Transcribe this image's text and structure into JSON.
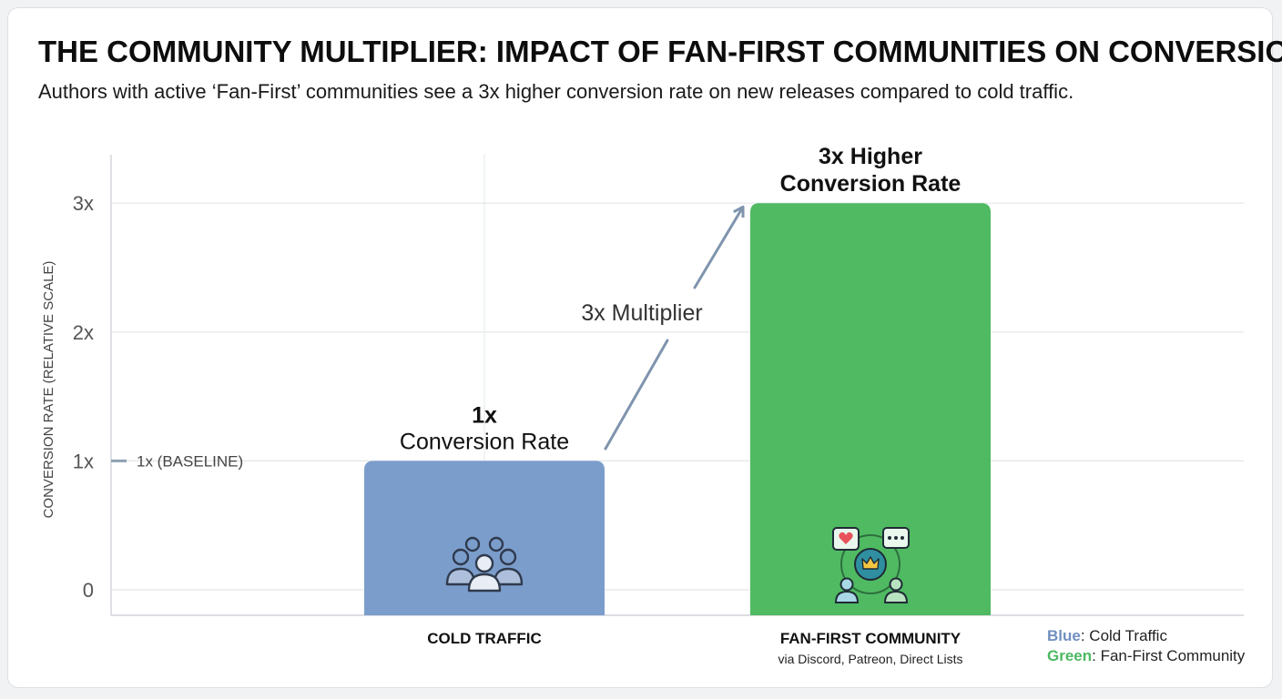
{
  "title": "THE COMMUNITY MULTIPLIER: IMPACT OF FAN-FIRST COMMUNITIES ON CONVERSION",
  "subtitle": "Authors with active ‘Fan-First’ communities see a 3x higher conversion rate on new releases compared to cold traffic.",
  "colors": {
    "cold": "#7b9dcb",
    "fan": "#4fba62",
    "arrow": "#7f94ad"
  },
  "chart_data": {
    "type": "bar",
    "ylabel": "CONVERSION RATE (RELATIVE SCALE)",
    "ylim": [
      0,
      3.3
    ],
    "yticks": [
      {
        "value": 0,
        "label": "0"
      },
      {
        "value": 1,
        "label": "1x"
      },
      {
        "value": 2,
        "label": "2x"
      },
      {
        "value": 3,
        "label": "3x"
      }
    ],
    "grid": true,
    "categories": [
      "COLD TRAFFIC",
      "FAN-FIRST COMMUNITY"
    ],
    "category_sublabels": [
      "",
      "via Discord, Patreon, Direct Lists"
    ],
    "values": [
      1,
      3
    ],
    "bar_colors": [
      "#7b9dcb",
      "#4fba62"
    ],
    "bar_icons": [
      "group-of-people-icon",
      "community-hub-icon"
    ],
    "data_labels": [
      {
        "bold": "1x",
        "text": "Conversion Rate"
      },
      {
        "bold": "3x Higher",
        "text": "Conversion Rate"
      }
    ],
    "baseline_label": "1x (BASELINE)",
    "annotation": "3x Multiplier",
    "legend": [
      {
        "key": "Blue",
        "text": ": Cold Traffic",
        "color": "#7b9dcb"
      },
      {
        "key": "Green",
        "text": ": Fan-First Community",
        "color": "#4fba62"
      }
    ],
    "legend_position": "bottom-right"
  }
}
